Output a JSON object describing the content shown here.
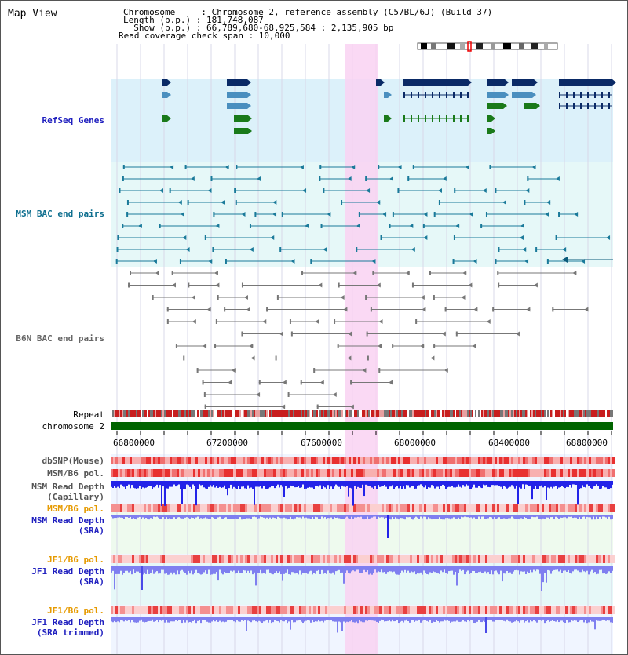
{
  "title": "Map View",
  "info": {
    "chromosome": "Chromosome     : Chromosome 2, reference assembly (C57BL/6J) (Build 37)",
    "length": "Length (b.p.) : 181,748,087",
    "show": "  Show (b.p.) : 66,789,680-68,925,584 : 2,135,905 bp",
    "coverage": "Read coverage check span : 10,000"
  },
  "tracks": {
    "refseq": "RefSeq Genes",
    "msm_bac": "MSM BAC end pairs",
    "b6n_bac": "B6N BAC end pairs",
    "repeat": "Repeat",
    "chromosome": "chromosome 2",
    "dbsnp": "dbSNP(Mouse)",
    "msm_b6_pol": "MSM/B6 pol.",
    "msm_depth_cap_1": "MSM Read Depth",
    "msm_depth_cap_2": "(Capillary)",
    "msm_b6_pol_2": "MSM/B6 pol.",
    "msm_depth_sra_1": "MSM Read Depth",
    "msm_depth_sra_2": "(SRA)",
    "jf1_b6_pol": "JF1/B6 pol.",
    "jf1_depth_sra_1": "JF1 Read Depth",
    "jf1_depth_sra_2": "(SRA)",
    "jf1_b6_pol_2": "JF1/B6 pol.",
    "jf1_depth_trim_1": "JF1 Read Depth",
    "jf1_depth_trim_2": "(SRA trimmed)"
  },
  "axis": {
    "ticks": [
      "66800000",
      "67200000",
      "67600000",
      "68000000",
      "68400000",
      "68800000"
    ]
  },
  "colors": {
    "highlight": "#f9d2f2",
    "refseq_bg": "#dcf1fa",
    "msm_bg": "#e6f8f8",
    "blue_label": "#1f1fbf",
    "teal_label": "#0f6f8f",
    "orange_label": "#e69a00",
    "chromosome_bar": "#006400",
    "depth_blue": "#2323e8",
    "depth_light": "#7f7ff0"
  }
}
